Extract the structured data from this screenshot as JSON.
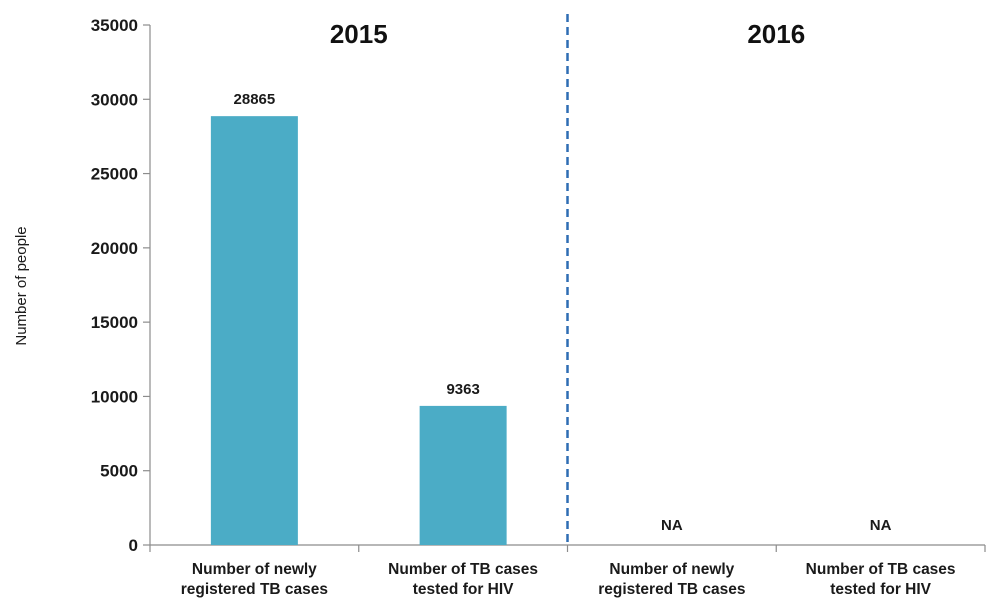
{
  "chart_data": {
    "type": "bar",
    "ylabel": "Number of people",
    "ylim": [
      0,
      35000
    ],
    "yticks": [
      0,
      5000,
      10000,
      15000,
      20000,
      25000,
      30000,
      35000
    ],
    "groups": [
      {
        "label": "2015",
        "categories": [
          "0",
          "1"
        ]
      },
      {
        "label": "2016",
        "categories": [
          "2",
          "3"
        ]
      }
    ],
    "categories": [
      [
        "Number of newly",
        "registered TB cases"
      ],
      [
        "Number of TB cases",
        "tested for HIV"
      ],
      [
        "Number of newly",
        "registered TB cases"
      ],
      [
        "Number of TB cases",
        "tested for HIV"
      ]
    ],
    "values": [
      28865,
      9363,
      null,
      null
    ],
    "data_labels": [
      "28865",
      "9363",
      "NA",
      "NA"
    ],
    "bar_color": "#4BACC6",
    "divider_color": "#2E6DB4",
    "grid": false,
    "legend": "none"
  }
}
